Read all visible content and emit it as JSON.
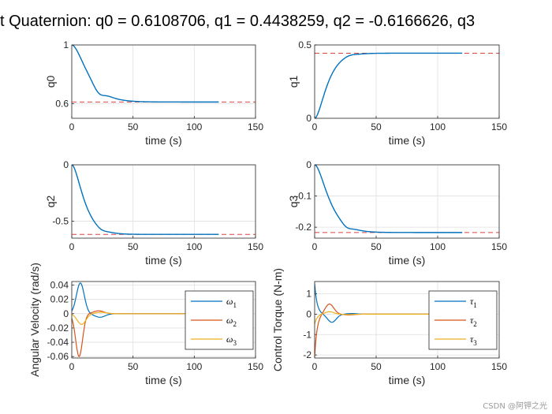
{
  "title": "t Quaternion: q0 = 0.6108706, q1 = 0.4438259, q2 = -0.6166626, q3",
  "watermark": "CSDN @阿钾之光",
  "colors": {
    "blue": "#0072BD",
    "orange": "#D95319",
    "yellow": "#EDB120",
    "ref": "#E0403F",
    "grid": "#DFDFDF",
    "axis": "#262626"
  },
  "chart_data": [
    {
      "id": "q0",
      "type": "line",
      "ylabel": "q0",
      "xlabel": "time (s)",
      "xlim": [
        0,
        150
      ],
      "ylim": [
        0.5,
        1
      ],
      "xticks": [
        0,
        50,
        100,
        150
      ],
      "yticks": [
        0.6,
        1
      ],
      "ytick_labels": [
        "0.6",
        "1"
      ],
      "reference": 0.6108706,
      "response": {
        "start": 1.0,
        "final": 0.6108706,
        "end": 120,
        "tau": 8,
        "peak": -0.033,
        "peak_t": 22,
        "peak_w": 5.5
      }
    },
    {
      "id": "q1",
      "type": "line",
      "ylabel": "q1",
      "xlabel": "time (s)",
      "xlim": [
        0,
        150
      ],
      "ylim": [
        0,
        0.5
      ],
      "xticks": [
        0,
        50,
        100,
        150
      ],
      "yticks": [
        0,
        0.5
      ],
      "ytick_labels": [
        "0",
        "0.5"
      ],
      "reference": 0.4438259,
      "response": {
        "start": 0.0,
        "final": 0.4438259,
        "end": 120,
        "tau": 6,
        "peak": 0.006,
        "peak_t": 28,
        "peak_w": 6
      }
    },
    {
      "id": "q2",
      "type": "line",
      "ylabel": "q2",
      "xlabel": "time (s)",
      "xlim": [
        0,
        150
      ],
      "ylim": [
        -0.65,
        0
      ],
      "xticks": [
        0,
        50,
        100,
        150
      ],
      "yticks": [
        -0.5,
        0
      ],
      "ytick_labels": [
        "-0.5",
        "0"
      ],
      "reference": -0.6166626,
      "response": {
        "start": 0.0,
        "final": -0.6166626,
        "end": 120,
        "tau": 6,
        "peak": -0.012,
        "peak_t": 24,
        "peak_w": 5
      }
    },
    {
      "id": "q3",
      "type": "line",
      "ylabel": "q3",
      "xlabel": "time (s)",
      "xlim": [
        0,
        150
      ],
      "ylim": [
        -0.235,
        0
      ],
      "xticks": [
        0,
        50,
        100,
        150
      ],
      "yticks": [
        -0.2,
        -0.1,
        0
      ],
      "ytick_labels": [
        "-0.2",
        "-0.1",
        "0"
      ],
      "reference": -0.217,
      "response": {
        "start": 0.0,
        "final": -0.217,
        "end": 120,
        "tau": 7,
        "peak": -0.008,
        "peak_t": 26,
        "peak_w": 5
      }
    },
    {
      "id": "omega",
      "type": "line",
      "ylabel": "Angular Velocity (rad/s)",
      "xlabel": "time (s)",
      "xlim": [
        0,
        150
      ],
      "ylim": [
        -0.062,
        0.045
      ],
      "xticks": [
        0,
        50,
        100,
        150
      ],
      "yticks": [
        -0.06,
        -0.04,
        -0.02,
        0,
        0.02,
        0.04
      ],
      "ytick_labels": [
        "-0.06",
        "-0.04",
        "-0.02",
        "0",
        "0.02",
        "0.04"
      ],
      "legend_position": "right",
      "series": [
        {
          "name": "ω",
          "sub": "1",
          "color_key": "blue",
          "pulses": [
            [
              0.043,
              7,
              4.5
            ],
            [
              -0.005,
              23,
              6
            ]
          ],
          "end": 120
        },
        {
          "name": "ω",
          "sub": "2",
          "color_key": "orange",
          "pulses": [
            [
              -0.06,
              6,
              4
            ],
            [
              0.004,
              22,
              6
            ]
          ],
          "end": 120
        },
        {
          "name": "ω",
          "sub": "3",
          "color_key": "yellow",
          "pulses": [
            [
              -0.015,
              8,
              5
            ],
            [
              0.002,
              24,
              6
            ]
          ],
          "end": 120
        }
      ]
    },
    {
      "id": "tau",
      "type": "line",
      "ylabel": "Control Torque (N-m)",
      "xlabel": "time (s)",
      "xlim": [
        0,
        150
      ],
      "ylim": [
        -2.15,
        1.6
      ],
      "xticks": [
        0,
        50,
        100,
        150
      ],
      "yticks": [
        -2,
        -1,
        0,
        1
      ],
      "ytick_labels": [
        "-2",
        "-1",
        "0",
        "1"
      ],
      "legend_position": "right",
      "series": [
        {
          "name": "τ",
          "sub": "1",
          "color_key": "blue",
          "start": 1.5,
          "decay": 2.0,
          "pulses": [
            [
              -0.4,
              14,
              5
            ],
            [
              0.03,
              30,
              6
            ]
          ],
          "end": 120
        },
        {
          "name": "τ",
          "sub": "2",
          "color_key": "orange",
          "start": -2.1,
          "decay": 2.0,
          "pulses": [
            [
              0.5,
              12,
              5
            ],
            [
              -0.04,
              28,
              6
            ]
          ],
          "end": 120
        },
        {
          "name": "τ",
          "sub": "3",
          "color_key": "yellow",
          "start": -0.5,
          "decay": 2.0,
          "pulses": [
            [
              0.12,
              12,
              5
            ],
            [
              -0.02,
              28,
              6
            ]
          ],
          "end": 120
        }
      ]
    }
  ]
}
